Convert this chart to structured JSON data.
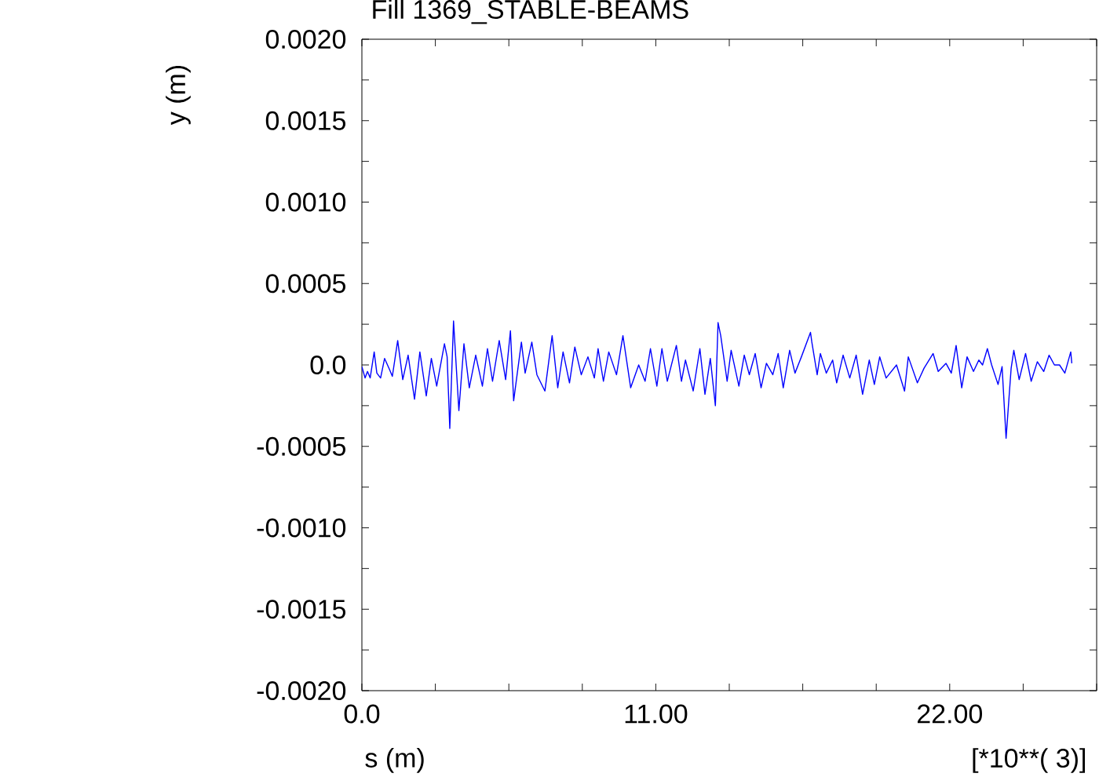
{
  "chart_data": {
    "type": "line",
    "title": "Fill 1369_STABLE-BEAMS",
    "xlabel": "s (m)",
    "ylabel": "y (m)",
    "annotations": [
      "[*10**( 3)]"
    ],
    "xlim": [
      0,
      27.5
    ],
    "ylim": [
      -0.002,
      0.002
    ],
    "xticks": [
      {
        "value": 0,
        "label": "0.0"
      },
      {
        "value": 2.75,
        "label": null
      },
      {
        "value": 5.5,
        "label": null
      },
      {
        "value": 8.25,
        "label": null
      },
      {
        "value": 11,
        "label": "11.00"
      },
      {
        "value": 13.75,
        "label": null
      },
      {
        "value": 16.5,
        "label": null
      },
      {
        "value": 19.25,
        "label": null
      },
      {
        "value": 22,
        "label": "22.00"
      },
      {
        "value": 24.75,
        "label": null
      },
      {
        "value": 27.5,
        "label": null
      }
    ],
    "yticks": [
      {
        "value": -0.002,
        "label": "-0.0020"
      },
      {
        "value": -0.00175,
        "label": null
      },
      {
        "value": -0.0015,
        "label": "-0.0015"
      },
      {
        "value": -0.00125,
        "label": null
      },
      {
        "value": -0.001,
        "label": "-0.0010"
      },
      {
        "value": -0.00075,
        "label": null
      },
      {
        "value": -0.0005,
        "label": "-0.0005"
      },
      {
        "value": -0.00025,
        "label": null
      },
      {
        "value": 0,
        "label": "0.0"
      },
      {
        "value": 0.00025,
        "label": null
      },
      {
        "value": 0.0005,
        "label": "0.0005"
      },
      {
        "value": 0.00075,
        "label": null
      },
      {
        "value": 0.001,
        "label": "0.0010"
      },
      {
        "value": 0.00125,
        "label": null
      },
      {
        "value": 0.0015,
        "label": "0.0015"
      },
      {
        "value": 0.00175,
        "label": null
      },
      {
        "value": 0.002,
        "label": "0.0020"
      }
    ],
    "series": [
      {
        "color": "#0000ff",
        "x": [
          0,
          0.12,
          0.21,
          0.31,
          0.46,
          0.56,
          0.7,
          0.85,
          1.04,
          1.14,
          1.34,
          1.53,
          1.73,
          1.97,
          2.17,
          2.41,
          2.6,
          2.8,
          3.09,
          3.19,
          3.29,
          3.43,
          3.63,
          3.82,
          4.02,
          4.26,
          4.51,
          4.7,
          4.89,
          5.14,
          5.38,
          5.56,
          5.68,
          5.97,
          6.11,
          6.36,
          6.55,
          6.85,
          7.12,
          7.33,
          7.53,
          7.77,
          7.97,
          8.21,
          8.46,
          8.7,
          8.84,
          9.04,
          9.24,
          9.53,
          9.77,
          10.06,
          10.36,
          10.6,
          10.8,
          11.04,
          11.23,
          11.43,
          11.77,
          11.96,
          12.11,
          12.4,
          12.65,
          12.84,
          13.04,
          13.23,
          13.33,
          13.43,
          13.67,
          13.82,
          14.11,
          14.31,
          14.5,
          14.72,
          14.94,
          15.14,
          15.38,
          15.58,
          15.77,
          16.01,
          16.21,
          16.45,
          16.79,
          16.84,
          17.04,
          17.16,
          17.38,
          17.62,
          17.77,
          18.01,
          18.26,
          18.5,
          18.74,
          18.99,
          19.18,
          19.38,
          19.62,
          20.01,
          20.31,
          20.45,
          20.79,
          21.04,
          21.38,
          21.57,
          21.86,
          22.06,
          22.24,
          22.45,
          22.65,
          22.89,
          23.09,
          23.23,
          23.41,
          23.57,
          23.81,
          23.96,
          24.11,
          24.3,
          24.4,
          24.6,
          24.84,
          25.05,
          25.28,
          25.52,
          25.72,
          25.92,
          26.11,
          26.31,
          26.53,
          26.57
        ],
        "values": [
          -1e-05,
          -8e-05,
          -4e-05,
          -8e-05,
          8e-05,
          -5e-05,
          -8e-05,
          4e-05,
          -3e-05,
          -7e-05,
          0.00015,
          -9e-05,
          6e-05,
          -0.00021,
          8e-05,
          -0.00019,
          4e-05,
          -0.00013,
          0.00013,
          5e-05,
          -0.00039,
          0.00027,
          -0.00028,
          0.00013,
          -0.00014,
          6e-05,
          -0.00013,
          0.0001,
          -0.0001,
          0.00015,
          -9e-05,
          0.00021,
          -0.00022,
          0.00014,
          -5e-05,
          0.00014,
          -6e-05,
          -0.00016,
          0.00018,
          -0.00014,
          8e-05,
          -0.00011,
          0.00011,
          -6e-05,
          5e-05,
          -8e-05,
          0.0001,
          -0.0001,
          8e-05,
          -6e-05,
          0.00018,
          -0.00014,
          0.0,
          -0.0001,
          0.0001,
          -0.00013,
          0.0001,
          -0.0001,
          0.00012,
          -0.0001,
          3e-05,
          -0.00016,
          0.0001,
          -0.00018,
          4e-05,
          -0.00025,
          0.00026,
          0.00018,
          -0.0001,
          9e-05,
          -0.00013,
          6e-05,
          -6e-05,
          7e-05,
          -0.00014,
          1e-05,
          -6e-05,
          7e-05,
          -0.00014,
          9e-05,
          -5e-05,
          5e-05,
          0.0002,
          0.00014,
          -6e-05,
          7e-05,
          -5e-05,
          3e-05,
          -0.00011,
          6e-05,
          -8e-05,
          6e-05,
          -0.00018,
          3e-05,
          -0.00012,
          5e-05,
          -8e-05,
          0.0,
          -0.00016,
          5e-05,
          -0.00011,
          -2e-05,
          7e-05,
          -4e-05,
          1e-05,
          -5e-05,
          0.00012,
          -0.00014,
          5e-05,
          -4e-05,
          3e-05,
          0.0,
          0.0001,
          0.0,
          -0.00012,
          -1e-05,
          -0.00045,
          -2e-05,
          9e-05,
          -9e-05,
          7e-05,
          -0.0001,
          2e-05,
          -4e-05,
          6e-05,
          0.0,
          0.0,
          -5e-05,
          8e-05,
          1e-05
        ]
      }
    ]
  }
}
